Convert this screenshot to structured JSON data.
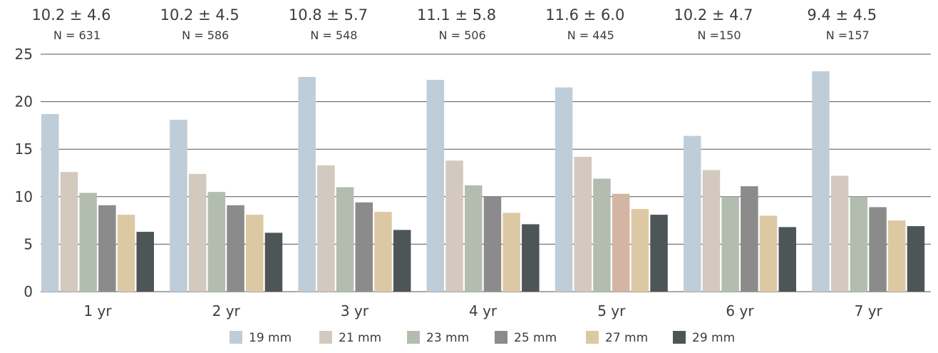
{
  "chart_data": {
    "type": "bar",
    "title": "",
    "xlabel": "",
    "ylabel": "",
    "ylim": [
      0,
      25
    ],
    "yticks": [
      0,
      5,
      10,
      15,
      20,
      25
    ],
    "grid": true,
    "legend_position": "bottom",
    "categories": [
      "1 yr",
      "2 yr",
      "3 yr",
      "4 yr",
      "5 yr",
      "6 yr",
      "7 yr"
    ],
    "annotations": [
      {
        "main": "10.2 ± 4.6",
        "sub": "N = 631"
      },
      {
        "main": "10.2 ± 4.5",
        "sub": "N = 586"
      },
      {
        "main": "10.8 ± 5.7",
        "sub": "N = 548"
      },
      {
        "main": "11.1 ± 5.8",
        "sub": "N = 506"
      },
      {
        "main": "11.6 ± 6.0",
        "sub": "N = 445"
      },
      {
        "main": "10.2 ± 4.7",
        "sub": "N =150"
      },
      {
        "main": "9.4 ± 4.5",
        "sub": "N =157"
      }
    ],
    "series": [
      {
        "name": "19 mm",
        "color": "#bfcdd8",
        "values": [
          18.7,
          18.1,
          22.6,
          22.3,
          21.5,
          16.4,
          23.2
        ]
      },
      {
        "name": "21 mm",
        "color": "#d3c9bf",
        "values": [
          12.6,
          12.4,
          13.3,
          13.8,
          14.2,
          12.8,
          12.2
        ]
      },
      {
        "name": "23 mm",
        "color": "#b2bdb0",
        "values": [
          10.4,
          10.5,
          11.0,
          11.2,
          11.9,
          10.0,
          10.0
        ]
      },
      {
        "name": "25 mm",
        "color": "#8b8b8b",
        "values": [
          9.1,
          9.1,
          9.4,
          10.0,
          10.3,
          11.1,
          8.9
        ]
      },
      {
        "name": "27 mm",
        "color": "#dcc9a4",
        "values": [
          8.1,
          8.1,
          8.4,
          8.3,
          8.7,
          8.0,
          7.5
        ]
      },
      {
        "name": "29 mm",
        "color": "#4e5557",
        "values": [
          6.3,
          6.2,
          6.5,
          7.1,
          8.1,
          6.8,
          6.9
        ]
      }
    ],
    "highlight": {
      "series": 3,
      "category": 4,
      "color": "#d4b4a3"
    }
  }
}
